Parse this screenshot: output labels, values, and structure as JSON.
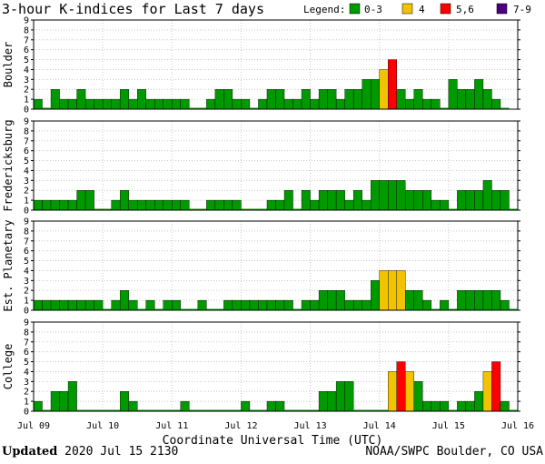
{
  "chart_data": {
    "type": "bar",
    "title": "3-hour K-indices for Last 7 days",
    "xlabel": "Coordinate Universal Time (UTC)",
    "x_ticks": [
      "Jul 09",
      "Jul 10",
      "Jul 11",
      "Jul 12",
      "Jul 13",
      "Jul 14",
      "Jul 15",
      "Jul 16"
    ],
    "y_ticks": [
      "0",
      "1",
      "2",
      "3",
      "4",
      "5",
      "6",
      "7",
      "8",
      "9"
    ],
    "ylim": [
      0,
      9
    ],
    "grid": true,
    "legend": {
      "position": "top-right",
      "label": "Legend:",
      "entries": [
        {
          "label": "0-3",
          "color": "#009900"
        },
        {
          "label": "4",
          "color": "#f2c300"
        },
        {
          "label": "5,6",
          "color": "#ff0000"
        },
        {
          "label": "7-9",
          "color": "#4b0082"
        }
      ]
    },
    "series": [
      {
        "name": "Boulder",
        "values": [
          1,
          0,
          2,
          1,
          1,
          2,
          1,
          1,
          1,
          1,
          2,
          1,
          2,
          1,
          1,
          1,
          1,
          1,
          0,
          0,
          1,
          2,
          2,
          1,
          1,
          0,
          1,
          2,
          2,
          1,
          1,
          2,
          1,
          2,
          2,
          1,
          2,
          2,
          3,
          3,
          4,
          5,
          2,
          1,
          2,
          1,
          1,
          0,
          3,
          2,
          2,
          3,
          2,
          1,
          0
        ]
      },
      {
        "name": "Fredericksburg",
        "values": [
          1,
          1,
          1,
          1,
          1,
          2,
          2,
          0,
          0,
          1,
          2,
          1,
          1,
          1,
          1,
          1,
          1,
          1,
          0,
          0,
          1,
          1,
          1,
          1,
          0,
          0,
          0,
          1,
          1,
          2,
          0,
          2,
          1,
          2,
          2,
          2,
          1,
          2,
          1,
          3,
          3,
          3,
          3,
          2,
          2,
          2,
          1,
          1,
          0,
          2,
          2,
          2,
          3,
          2,
          2,
          0
        ]
      },
      {
        "name": "Est. Planetary",
        "values": [
          1,
          1,
          1,
          1,
          1,
          1,
          1,
          1,
          0,
          1,
          2,
          1,
          0,
          1,
          0,
          1,
          1,
          0,
          0,
          1,
          0,
          0,
          1,
          1,
          1,
          1,
          1,
          1,
          1,
          1,
          0,
          1,
          1,
          2,
          2,
          2,
          1,
          1,
          1,
          3,
          4,
          4,
          4,
          2,
          2,
          1,
          0,
          1,
          0,
          2,
          2,
          2,
          2,
          2,
          1,
          0
        ]
      },
      {
        "name": "College",
        "values": [
          1,
          0,
          2,
          2,
          3,
          0,
          0,
          0,
          0,
          0,
          2,
          1,
          0,
          0,
          0,
          0,
          0,
          1,
          0,
          0,
          0,
          0,
          0,
          0,
          1,
          0,
          0,
          1,
          1,
          0,
          0,
          0,
          0,
          2,
          2,
          3,
          3,
          0,
          0,
          0,
          0,
          4,
          5,
          4,
          3,
          1,
          1,
          1,
          0,
          1,
          1,
          2,
          4,
          5,
          1,
          0
        ]
      }
    ]
  },
  "footer": {
    "updated_label": "Updated",
    "updated_value": "2020 Jul 15 2130",
    "credit": "NOAA/SWPC Boulder, CO USA"
  }
}
